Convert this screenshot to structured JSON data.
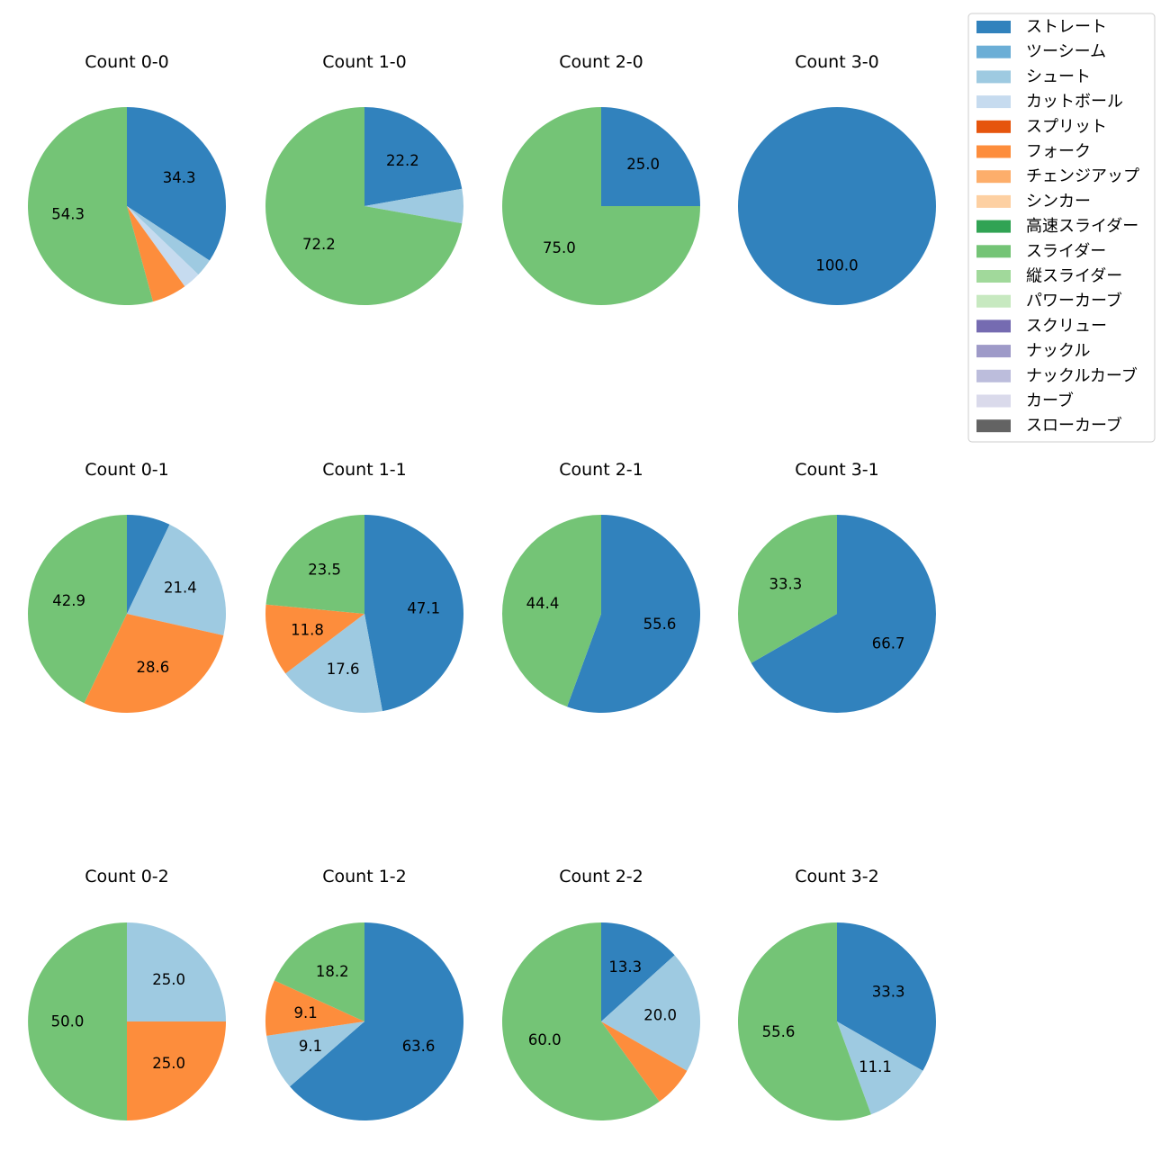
{
  "legend": [
    {
      "label": "ストレート",
      "color": "#3182bd"
    },
    {
      "label": "ツーシーム",
      "color": "#6baed6"
    },
    {
      "label": "シュート",
      "color": "#9ecae1"
    },
    {
      "label": "カットボール",
      "color": "#c6dbef"
    },
    {
      "label": "スプリット",
      "color": "#e6550d"
    },
    {
      "label": "フォーク",
      "color": "#fd8d3c"
    },
    {
      "label": "チェンジアップ",
      "color": "#fdae6b"
    },
    {
      "label": "シンカー",
      "color": "#fdd0a2"
    },
    {
      "label": "高速スライダー",
      "color": "#31a354"
    },
    {
      "label": "スライダー",
      "color": "#74c476"
    },
    {
      "label": "縦スライダー",
      "color": "#a1d99b"
    },
    {
      "label": "パワーカーブ",
      "color": "#c7e9c0"
    },
    {
      "label": "スクリュー",
      "color": "#756bb1"
    },
    {
      "label": "ナックル",
      "color": "#9e9ac8"
    },
    {
      "label": "ナックルカーブ",
      "color": "#bcbddc"
    },
    {
      "label": "カーブ",
      "color": "#dadaeb"
    },
    {
      "label": "スローカーブ",
      "color": "#636363"
    }
  ],
  "chart_data": [
    {
      "type": "pie",
      "title": "Count 0-0",
      "slices": [
        {
          "pitch": "ストレート",
          "value": 34.3,
          "label": "34.3"
        },
        {
          "pitch": "シュート",
          "value": 2.9,
          "label": ""
        },
        {
          "pitch": "カットボール",
          "value": 2.9,
          "label": ""
        },
        {
          "pitch": "フォーク",
          "value": 5.7,
          "label": ""
        },
        {
          "pitch": "スライダー",
          "value": 54.3,
          "label": "54.3"
        }
      ]
    },
    {
      "type": "pie",
      "title": "Count 1-0",
      "slices": [
        {
          "pitch": "ストレート",
          "value": 22.2,
          "label": "22.2"
        },
        {
          "pitch": "シュート",
          "value": 5.6,
          "label": ""
        },
        {
          "pitch": "スライダー",
          "value": 72.2,
          "label": "72.2"
        }
      ]
    },
    {
      "type": "pie",
      "title": "Count 2-0",
      "slices": [
        {
          "pitch": "ストレート",
          "value": 25.0,
          "label": "25.0"
        },
        {
          "pitch": "スライダー",
          "value": 75.0,
          "label": "75.0"
        }
      ]
    },
    {
      "type": "pie",
      "title": "Count 3-0",
      "slices": [
        {
          "pitch": "ストレート",
          "value": 100.0,
          "label": "100.0"
        }
      ]
    },
    {
      "type": "pie",
      "title": "Count 0-1",
      "slices": [
        {
          "pitch": "ストレート",
          "value": 7.1,
          "label": ""
        },
        {
          "pitch": "シュート",
          "value": 21.4,
          "label": "21.4"
        },
        {
          "pitch": "フォーク",
          "value": 28.6,
          "label": "28.6"
        },
        {
          "pitch": "スライダー",
          "value": 42.9,
          "label": "42.9"
        }
      ]
    },
    {
      "type": "pie",
      "title": "Count 1-1",
      "slices": [
        {
          "pitch": "ストレート",
          "value": 47.1,
          "label": "47.1"
        },
        {
          "pitch": "シュート",
          "value": 17.6,
          "label": "17.6"
        },
        {
          "pitch": "フォーク",
          "value": 11.8,
          "label": "11.8"
        },
        {
          "pitch": "スライダー",
          "value": 23.5,
          "label": "23.5"
        }
      ]
    },
    {
      "type": "pie",
      "title": "Count 2-1",
      "slices": [
        {
          "pitch": "ストレート",
          "value": 55.6,
          "label": "55.6"
        },
        {
          "pitch": "スライダー",
          "value": 44.4,
          "label": "44.4"
        }
      ]
    },
    {
      "type": "pie",
      "title": "Count 3-1",
      "slices": [
        {
          "pitch": "ストレート",
          "value": 66.7,
          "label": "66.7"
        },
        {
          "pitch": "スライダー",
          "value": 33.3,
          "label": "33.3"
        }
      ]
    },
    {
      "type": "pie",
      "title": "Count 0-2",
      "slices": [
        {
          "pitch": "シュート",
          "value": 25.0,
          "label": "25.0"
        },
        {
          "pitch": "フォーク",
          "value": 25.0,
          "label": "25.0"
        },
        {
          "pitch": "スライダー",
          "value": 50.0,
          "label": "50.0"
        }
      ]
    },
    {
      "type": "pie",
      "title": "Count 1-2",
      "slices": [
        {
          "pitch": "ストレート",
          "value": 63.6,
          "label": "63.6"
        },
        {
          "pitch": "シュート",
          "value": 9.1,
          "label": "9.1"
        },
        {
          "pitch": "フォーク",
          "value": 9.1,
          "label": "9.1"
        },
        {
          "pitch": "スライダー",
          "value": 18.2,
          "label": "18.2"
        }
      ]
    },
    {
      "type": "pie",
      "title": "Count 2-2",
      "slices": [
        {
          "pitch": "ストレート",
          "value": 13.3,
          "label": "13.3"
        },
        {
          "pitch": "シュート",
          "value": 20.0,
          "label": "20.0"
        },
        {
          "pitch": "フォーク",
          "value": 6.7,
          "label": ""
        },
        {
          "pitch": "スライダー",
          "value": 60.0,
          "label": "60.0"
        }
      ]
    },
    {
      "type": "pie",
      "title": "Count 3-2",
      "slices": [
        {
          "pitch": "ストレート",
          "value": 33.3,
          "label": "33.3"
        },
        {
          "pitch": "シュート",
          "value": 11.1,
          "label": "11.1"
        },
        {
          "pitch": "スライダー",
          "value": 55.6,
          "label": "55.6"
        }
      ]
    }
  ]
}
